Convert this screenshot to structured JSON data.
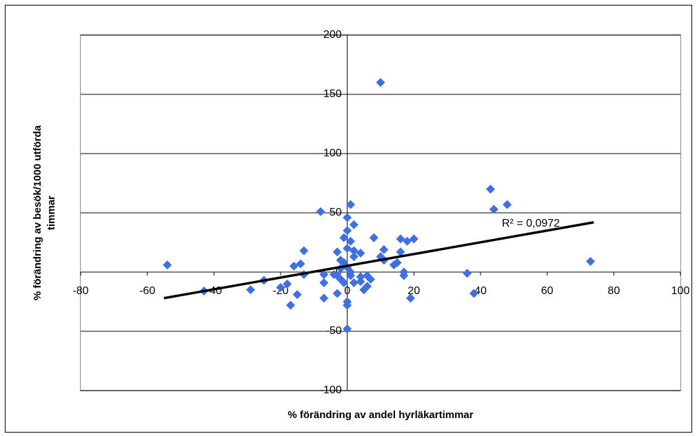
{
  "chart_data": {
    "type": "scatter",
    "xlabel": "% förändring av andel hyrläkartimmar",
    "ylabel": [
      "% förändring  av besök/1000 utförda",
      "timmar"
    ],
    "xlim": [
      -80,
      100
    ],
    "xticks": [
      -80,
      -60,
      -40,
      -20,
      0,
      20,
      40,
      60,
      80,
      100
    ],
    "ylim": [
      -100,
      200
    ],
    "yticks": [
      -100,
      -50,
      0,
      50,
      100,
      150,
      200
    ],
    "grid": true,
    "series": [
      {
        "color": "#3f6fe0",
        "x": [
          -54,
          -43,
          -29,
          -25,
          -20,
          -18,
          -17,
          -16,
          -15,
          -14,
          -13,
          -13,
          -8,
          -7,
          -7,
          -7,
          -3,
          -3,
          -4,
          -2,
          -1,
          0,
          0,
          0,
          0,
          0,
          0,
          1,
          2,
          1,
          2,
          2,
          -1,
          0,
          -2,
          1,
          1,
          -3,
          -1,
          2,
          4,
          4,
          6,
          7,
          5,
          6,
          4,
          8,
          10,
          10,
          11,
          11,
          14,
          15,
          16,
          17,
          17,
          16,
          18,
          20,
          19,
          36,
          38,
          43,
          44,
          48,
          73,
          -2
        ],
        "y": [
          6,
          -16,
          -15,
          -7,
          -13,
          -10,
          -28,
          5,
          -19,
          7,
          -2,
          18,
          51,
          -2,
          -22,
          -9,
          17,
          -18,
          -2,
          -6,
          29,
          46,
          35,
          20,
          -25,
          -28,
          -48,
          57,
          40,
          26,
          18,
          13,
          8,
          4,
          3,
          0,
          -3,
          -3,
          -9,
          -9,
          -4,
          -8,
          -3,
          -6,
          -15,
          -12,
          16,
          29,
          160,
          13,
          19,
          10,
          6,
          8,
          28,
          0,
          -3,
          17,
          26,
          28,
          -22,
          -1,
          -18,
          70,
          53,
          57,
          9,
          10
        ]
      }
    ],
    "trendline": {
      "color": "#000000",
      "x": [
        -55,
        74
      ],
      "y": [
        -22,
        42
      ]
    },
    "annotation": "R² = 0,0972"
  }
}
